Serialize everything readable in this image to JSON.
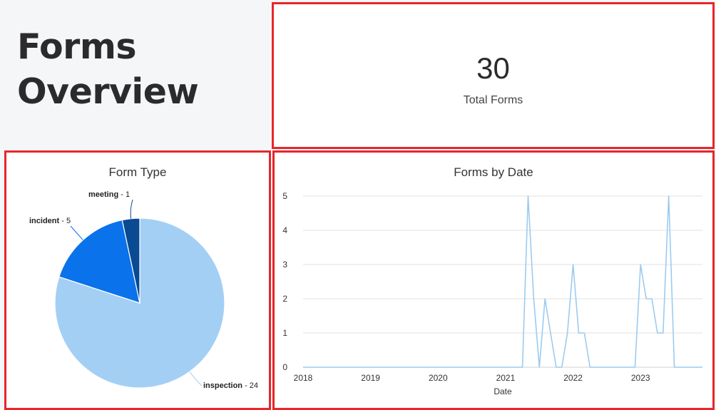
{
  "page": {
    "title_line1": "Forms",
    "title_line2": "Overview"
  },
  "kpi": {
    "value": "30",
    "label": "Total Forms"
  },
  "colors": {
    "card_border": "#e8262a",
    "inspection": "#a4cff5",
    "incident": "#0a72ea",
    "meeting": "#0a4a93",
    "line": "#9ccbf0",
    "grid": "#e0e0e0"
  },
  "chart_data": [
    {
      "type": "pie",
      "title": "Form Type",
      "slices": [
        {
          "label": "inspection",
          "value": 24,
          "display": " - 24"
        },
        {
          "label": "incident",
          "value": 5,
          "display": " - 5"
        },
        {
          "label": "meeting",
          "value": 1,
          "display": " - 1"
        }
      ]
    },
    {
      "type": "line",
      "title": "Forms by Date",
      "xlabel": "Date",
      "ylabel": "",
      "ylim": [
        0,
        5
      ],
      "yticks": [
        "0",
        "1",
        "2",
        "3",
        "4",
        "5"
      ],
      "xticks": [
        "2018",
        "2019",
        "2020",
        "2021",
        "2022",
        "2023"
      ],
      "xlim": [
        "2018-01",
        "2023-12"
      ],
      "grid": true,
      "x": [
        "2018-01",
        "2021-03",
        "2021-04",
        "2021-05",
        "2021-06",
        "2021-07",
        "2021-08",
        "2021-09",
        "2021-10",
        "2021-11",
        "2021-12",
        "2022-01",
        "2022-02",
        "2022-03",
        "2022-04",
        "2022-05",
        "2022-11",
        "2022-12",
        "2023-01",
        "2023-02",
        "2023-03",
        "2023-04",
        "2023-05",
        "2023-06",
        "2023-07",
        "2023-12"
      ],
      "values": [
        0,
        0,
        0,
        5,
        2,
        0,
        2,
        1,
        0,
        0,
        1,
        3,
        1,
        1,
        0,
        0,
        0,
        0,
        3,
        2,
        2,
        1,
        1,
        5,
        0,
        0
      ]
    }
  ]
}
